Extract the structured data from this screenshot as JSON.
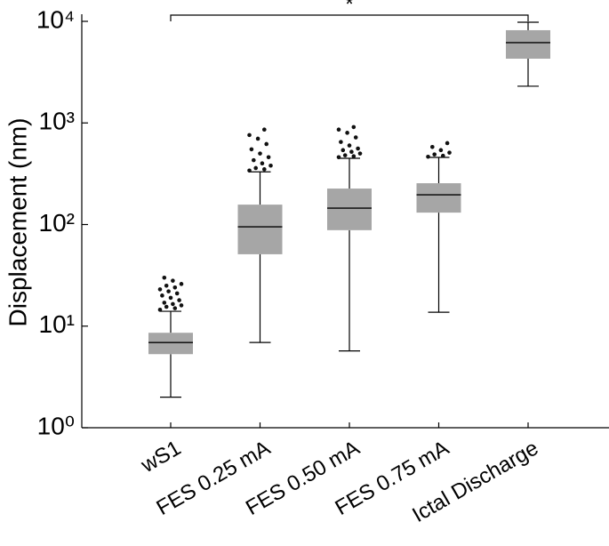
{
  "chart_data": {
    "type": "box",
    "y_label": "Displacement (nm)",
    "log_scale": true,
    "ylim": [
      1,
      10000
    ],
    "yticks": [
      {
        "value": 1,
        "label": "10⁰"
      },
      {
        "value": 10,
        "label": "10¹"
      },
      {
        "value": 100,
        "label": "10²"
      },
      {
        "value": 1000,
        "label": "10³"
      },
      {
        "value": 10000,
        "label": "10⁴"
      }
    ],
    "color": "#a6a6a6",
    "categories": [
      "wS1",
      "FES 0.25 mA",
      "FES 0.50 mA",
      "FES 0.75 mA",
      "Ictal Discharge"
    ],
    "boxes": [
      {
        "min": 2.0,
        "q1": 5.3,
        "median": 6.9,
        "q3": 8.6,
        "max": 14,
        "outliers": [
          14.5,
          15,
          15.5,
          16,
          16.5,
          17,
          18,
          19,
          20,
          21,
          22,
          23,
          24,
          25,
          26,
          28,
          30
        ]
      },
      {
        "min": 6.9,
        "q1": 51,
        "median": 95,
        "q3": 157,
        "max": 330,
        "outliers": [
          340,
          350,
          360,
          380,
          400,
          430,
          460,
          500,
          550,
          620,
          700,
          760,
          860
        ]
      },
      {
        "min": 5.7,
        "q1": 88,
        "median": 145,
        "q3": 226,
        "max": 449,
        "outliers": [
          460,
          470,
          480,
          500,
          520,
          540,
          560,
          600,
          650,
          720,
          800,
          860,
          910
        ]
      },
      {
        "min": 13.7,
        "q1": 131,
        "median": 196,
        "q3": 255,
        "max": 458,
        "outliers": [
          465,
          475,
          490,
          510,
          540,
          580,
          633
        ]
      },
      {
        "min": 2300,
        "q1": 4290,
        "median": 6170,
        "q3": 8180,
        "max": 9800,
        "outliers": []
      }
    ],
    "annotation": "*"
  }
}
